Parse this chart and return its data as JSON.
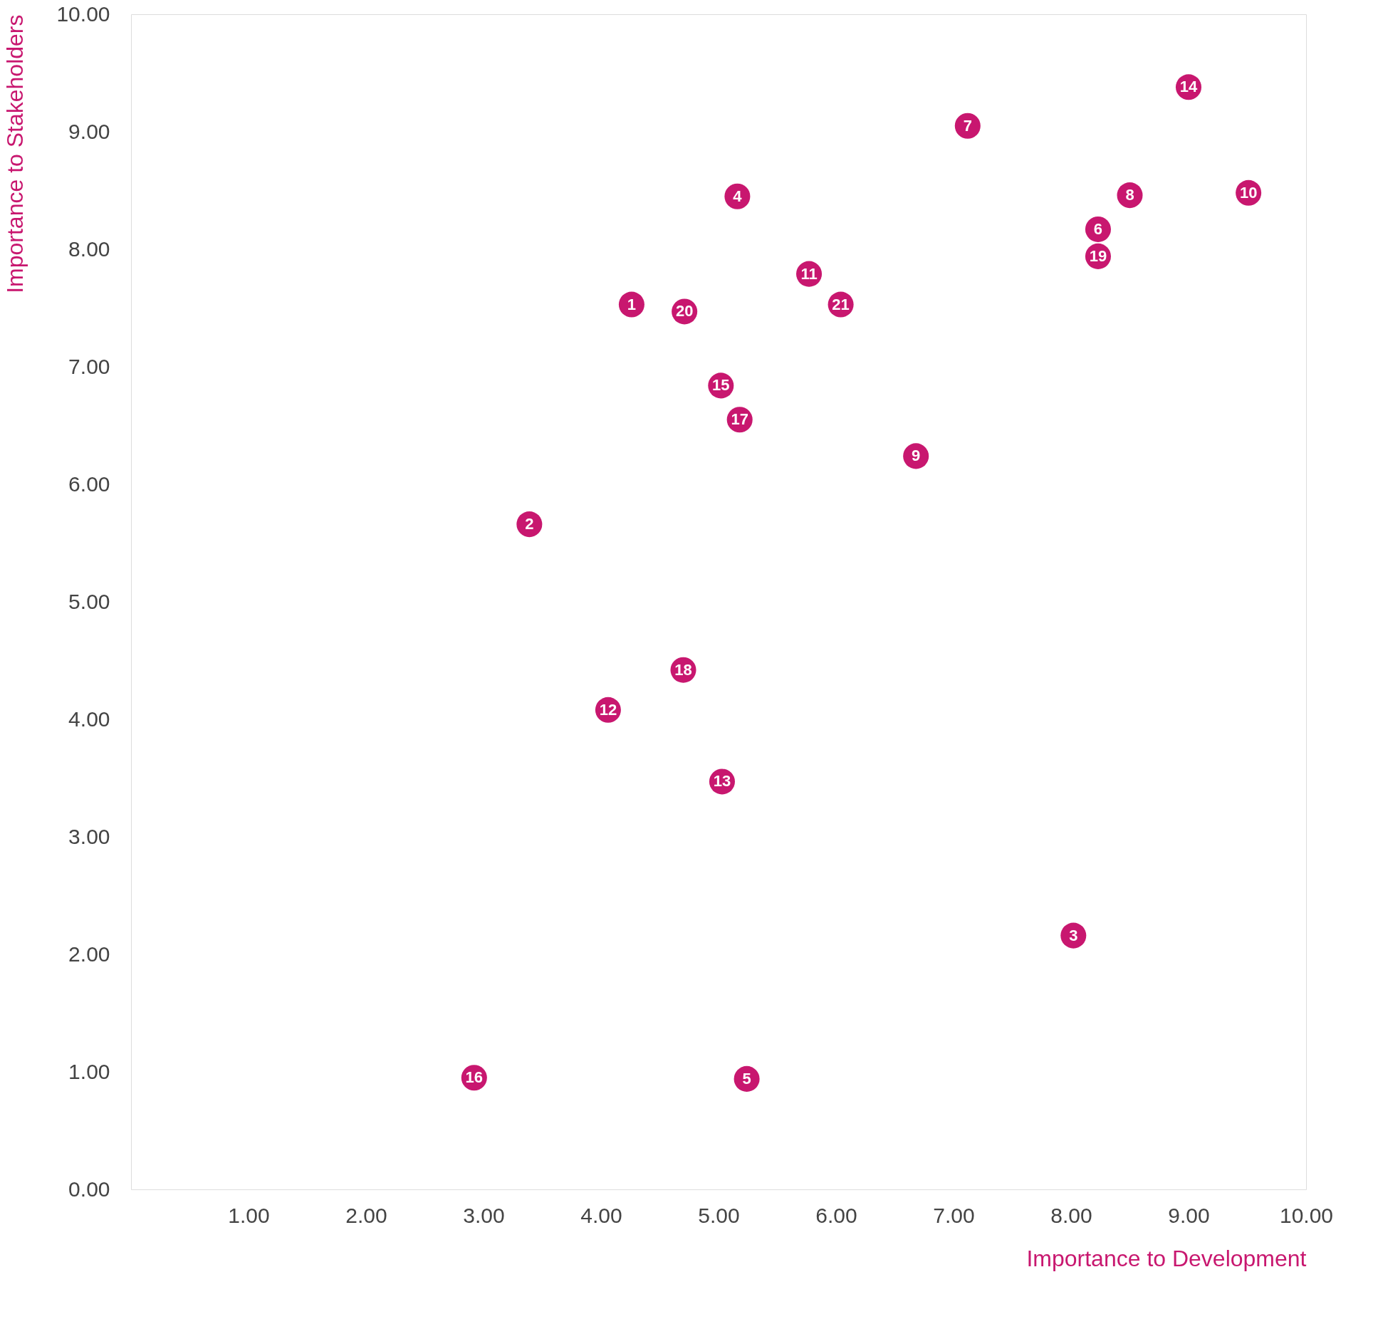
{
  "chart_data": {
    "type": "scatter",
    "xlabel": "Importance to Development",
    "ylabel": "Importance to Stakeholders",
    "x": [
      4.26,
      3.39,
      8.02,
      5.16,
      5.24,
      8.23,
      7.12,
      8.5,
      6.68,
      9.51,
      5.77,
      4.06,
      5.03,
      9.0,
      5.02,
      2.92,
      5.18,
      4.7,
      8.23,
      4.71,
      6.04
    ],
    "series": [
      {
        "color": "#c8176f",
        "values": [
          7.53,
          5.66,
          2.16,
          8.45,
          0.94,
          8.17,
          9.05,
          8.46,
          6.24,
          8.48,
          7.79,
          4.08,
          3.47,
          9.38,
          6.84,
          0.95,
          6.55,
          4.42,
          7.94,
          7.47,
          7.53
        ],
        "name": null
      }
    ],
    "annotations": [
      {
        "text": "1",
        "x": 4.26,
        "y": 7.53
      },
      {
        "text": "2",
        "x": 3.39,
        "y": 5.66
      },
      {
        "text": "3",
        "x": 8.02,
        "y": 2.16
      },
      {
        "text": "4",
        "x": 5.16,
        "y": 8.45
      },
      {
        "text": "5",
        "x": 5.24,
        "y": 0.94
      },
      {
        "text": "6",
        "x": 8.23,
        "y": 8.17
      },
      {
        "text": "7",
        "x": 7.12,
        "y": 9.05
      },
      {
        "text": "8",
        "x": 8.5,
        "y": 8.46
      },
      {
        "text": "9",
        "x": 6.68,
        "y": 6.24
      },
      {
        "text": "10",
        "x": 9.51,
        "y": 8.48
      },
      {
        "text": "11",
        "x": 5.77,
        "y": 7.79
      },
      {
        "text": "12",
        "x": 4.06,
        "y": 4.08
      },
      {
        "text": "13",
        "x": 5.03,
        "y": 3.47
      },
      {
        "text": "14",
        "x": 9.0,
        "y": 9.38
      },
      {
        "text": "15",
        "x": 5.02,
        "y": 6.84
      },
      {
        "text": "16",
        "x": 2.92,
        "y": 0.95
      },
      {
        "text": "17",
        "x": 5.18,
        "y": 6.55
      },
      {
        "text": "18",
        "x": 4.7,
        "y": 4.42
      },
      {
        "text": "19",
        "x": 8.23,
        "y": 7.94
      },
      {
        "text": "20",
        "x": 4.71,
        "y": 7.47
      },
      {
        "text": "21",
        "x": 6.04,
        "y": 7.53
      }
    ],
    "xlim": [
      0,
      10
    ],
    "ylim": [
      0,
      10
    ],
    "xticks": [
      {
        "value": 1,
        "label": "1.00"
      },
      {
        "value": 2,
        "label": "2.00"
      },
      {
        "value": 3,
        "label": "3.00"
      },
      {
        "value": 4,
        "label": "4.00"
      },
      {
        "value": 5,
        "label": "5.00"
      },
      {
        "value": 6,
        "label": "6.00"
      },
      {
        "value": 7,
        "label": "7.00"
      },
      {
        "value": 8,
        "label": "8.00"
      },
      {
        "value": 9,
        "label": "9.00"
      },
      {
        "value": 10,
        "label": "10.00"
      }
    ],
    "yticks": [
      {
        "value": 0,
        "label": "0.00"
      },
      {
        "value": 1,
        "label": "1.00"
      },
      {
        "value": 2,
        "label": "2.00"
      },
      {
        "value": 3,
        "label": "3.00"
      },
      {
        "value": 4,
        "label": "4.00"
      },
      {
        "value": 5,
        "label": "5.00"
      },
      {
        "value": 6,
        "label": "6.00"
      },
      {
        "value": 7,
        "label": "7.00"
      },
      {
        "value": 8,
        "label": "8.00"
      },
      {
        "value": 9,
        "label": "9.00"
      },
      {
        "value": 10,
        "label": "10.00"
      }
    ],
    "grid": false,
    "marker": "circle"
  }
}
